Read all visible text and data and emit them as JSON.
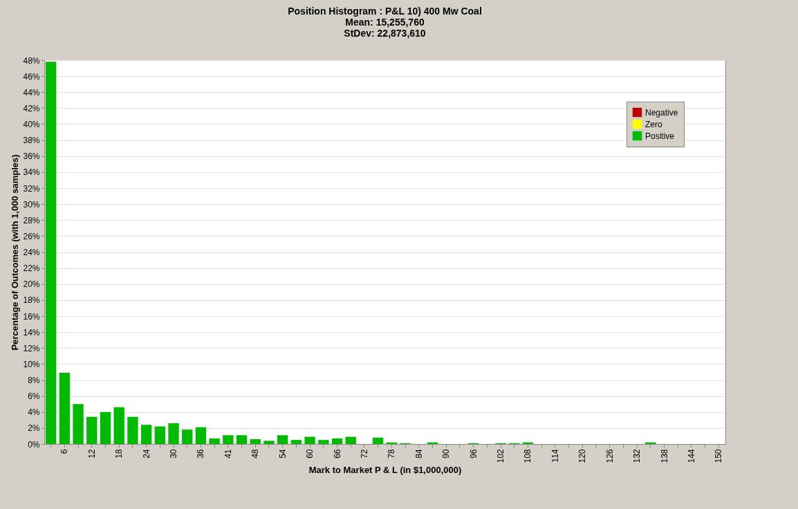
{
  "chart_data": {
    "type": "bar",
    "title": "Position Histogram : P&L    10) 400 Mw Coal",
    "subtitle": "Mean: 15,255,760\nStDev: 22,873,610",
    "xlabel": "Mark to Market P & L (in $1,000,000)",
    "ylabel": "Percentage of Outcomes (with 1,000 samples)",
    "categories": [
      null,
      "6",
      null,
      "12",
      null,
      "18",
      null,
      "24",
      null,
      "30",
      null,
      "36",
      null,
      "41",
      null,
      "48",
      null,
      "54",
      null,
      "60",
      null,
      "66",
      null,
      "72",
      null,
      "78",
      null,
      "84",
      null,
      "90",
      null,
      "96",
      null,
      "102",
      null,
      "108",
      null,
      "114",
      null,
      "120",
      null,
      "126",
      null,
      "132",
      null,
      "138",
      null,
      "144",
      null,
      "150"
    ],
    "series": [
      {
        "name": "Negative",
        "color": "#c00000",
        "values": [
          null,
          null,
          null,
          null,
          null,
          null,
          null,
          null,
          null,
          null,
          null,
          null,
          null,
          null,
          null,
          null,
          null,
          null,
          null,
          null,
          null,
          null,
          null,
          null,
          null,
          null,
          null,
          null,
          null,
          null,
          null,
          null,
          null,
          null,
          null,
          null,
          null,
          null,
          null,
          null,
          null,
          null,
          null,
          null,
          null,
          null,
          null,
          null,
          null,
          null
        ]
      },
      {
        "name": "Zero",
        "color": "#ffff00",
        "values": [
          null,
          null,
          null,
          null,
          null,
          null,
          null,
          null,
          null,
          null,
          null,
          null,
          null,
          null,
          null,
          null,
          null,
          null,
          null,
          null,
          null,
          null,
          null,
          null,
          null,
          null,
          null,
          null,
          null,
          null,
          null,
          null,
          null,
          null,
          null,
          null,
          null,
          null,
          null,
          null,
          null,
          null,
          null,
          null,
          null,
          null,
          null,
          null,
          null,
          null
        ]
      },
      {
        "name": "Positive",
        "color": "#00bb00",
        "values": [
          47.8,
          8.9,
          5.0,
          3.4,
          4.0,
          4.6,
          3.4,
          2.4,
          2.2,
          2.6,
          1.8,
          2.1,
          0.7,
          1.1,
          1.1,
          0.6,
          0.4,
          1.1,
          0.5,
          0.9,
          0.5,
          0.7,
          0.9,
          0,
          0.8,
          0.2,
          0.1,
          0,
          0.2,
          0,
          0,
          0.1,
          0,
          0.1,
          0.1,
          0.2,
          0,
          0,
          0,
          0,
          0,
          0,
          0,
          0,
          0.2,
          0,
          0,
          0,
          0,
          0
        ]
      }
    ],
    "ylim": [
      0,
      48
    ],
    "yticks": [
      {
        "value": 0,
        "label": "0%"
      },
      {
        "value": 2,
        "label": "2%"
      },
      {
        "value": 4,
        "label": "4%"
      },
      {
        "value": 6,
        "label": "6%"
      },
      {
        "value": 8,
        "label": "8%"
      },
      {
        "value": 10,
        "label": "10%"
      },
      {
        "value": 12,
        "label": "12%"
      },
      {
        "value": 14,
        "label": "14%"
      },
      {
        "value": 16,
        "label": "16%"
      },
      {
        "value": 18,
        "label": "18%"
      },
      {
        "value": 20,
        "label": "20%"
      },
      {
        "value": 22,
        "label": "22%"
      },
      {
        "value": 24,
        "label": "24%"
      },
      {
        "value": 26,
        "label": "26%"
      },
      {
        "value": 28,
        "label": "28%"
      },
      {
        "value": 30,
        "label": "30%"
      },
      {
        "value": 32,
        "label": "32%"
      },
      {
        "value": 34,
        "label": "34%"
      },
      {
        "value": 36,
        "label": "36%"
      },
      {
        "value": 38,
        "label": "38%"
      },
      {
        "value": 40,
        "label": "40%"
      },
      {
        "value": 42,
        "label": "42%"
      },
      {
        "value": 44,
        "label": "44%"
      },
      {
        "value": 46,
        "label": "46%"
      },
      {
        "value": 48,
        "label": "48%"
      }
    ],
    "grid": "y",
    "legend": "top right"
  }
}
